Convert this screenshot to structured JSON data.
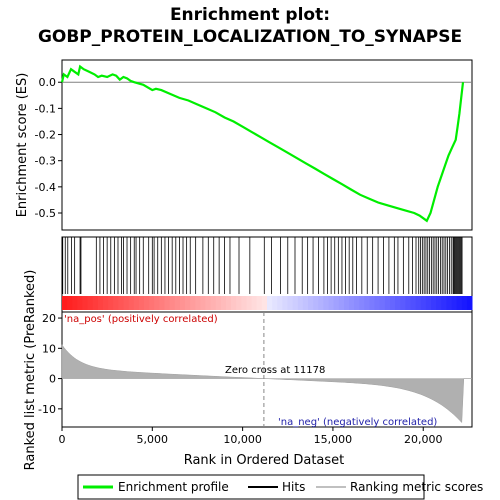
{
  "chart_data": {
    "type": "line",
    "title_line1": "Enrichment plot:",
    "title_line2": "GOBP_PROTEIN_LOCALIZATION_TO_SYNAPSE",
    "xlabel": "Rank in Ordered Dataset",
    "ylabel_top": "Enrichment score (ES)",
    "ylabel_bottom": "Ranked list metric (PreRanked)",
    "xlim": [
      0,
      22700
    ],
    "x_ticks": [
      0,
      5000,
      10000,
      15000,
      20000
    ],
    "x_tick_labels": [
      "0",
      "5,000",
      "10,000",
      "15,000",
      "20,000"
    ],
    "es_ylim": [
      -0.565,
      0.085
    ],
    "es_ticks": [
      0.0,
      -0.1,
      -0.2,
      -0.3,
      -0.4,
      -0.5
    ],
    "es_tick_labels": [
      "0.0",
      "-0.1",
      "-0.2",
      "-0.3",
      "-0.4",
      "-0.5"
    ],
    "metric_ylim": [
      -16,
      22
    ],
    "metric_ticks": [
      20,
      10,
      0,
      -10
    ],
    "metric_tick_labels": [
      "20",
      "10",
      "0",
      "-10"
    ],
    "zero_cross_rank": 11178,
    "zero_cross_label": "Zero cross at 11178",
    "pos_label": "'na_pos' (positively correlated)",
    "neg_label": "'na_neg' (negatively correlated)",
    "series": [
      {
        "name": "Enrichment profile",
        "color": "#00ee00",
        "x": [
          0,
          100,
          300,
          500,
          700,
          900,
          1000,
          1200,
          1500,
          1800,
          2000,
          2200,
          2500,
          2800,
          3000,
          3200,
          3400,
          3600,
          3800,
          4000,
          4500,
          5000,
          5200,
          5500,
          6000,
          6500,
          7000,
          7500,
          8000,
          8500,
          9000,
          9500,
          10000,
          10500,
          11000,
          11500,
          12000,
          12500,
          13000,
          13500,
          14000,
          14500,
          15000,
          15500,
          16000,
          16500,
          17000,
          17500,
          18000,
          18500,
          19000,
          19500,
          19800,
          20000,
          20200,
          20400,
          20600,
          20800,
          21000,
          21200,
          21400,
          21600,
          21800,
          21900,
          22000,
          22100,
          22200
        ],
        "y": [
          0.0,
          0.03,
          0.02,
          0.05,
          0.04,
          0.03,
          0.06,
          0.05,
          0.04,
          0.03,
          0.02,
          0.025,
          0.02,
          0.03,
          0.025,
          0.01,
          0.02,
          0.015,
          0.005,
          0.0,
          -0.01,
          -0.03,
          -0.025,
          -0.03,
          -0.045,
          -0.06,
          -0.07,
          -0.085,
          -0.1,
          -0.115,
          -0.135,
          -0.15,
          -0.17,
          -0.19,
          -0.21,
          -0.23,
          -0.25,
          -0.27,
          -0.29,
          -0.31,
          -0.33,
          -0.35,
          -0.37,
          -0.39,
          -0.41,
          -0.43,
          -0.445,
          -0.46,
          -0.47,
          -0.48,
          -0.49,
          -0.5,
          -0.51,
          -0.52,
          -0.53,
          -0.5,
          -0.45,
          -0.4,
          -0.36,
          -0.32,
          -0.28,
          -0.25,
          -0.22,
          -0.17,
          -0.12,
          -0.06,
          0.0
        ]
      }
    ],
    "hits": [
      40,
      180,
      320,
      520,
      700,
      1000,
      1050,
      1900,
      2100,
      2300,
      2500,
      2700,
      2900,
      3100,
      3300,
      3400,
      3600,
      3800,
      4000,
      4100,
      4300,
      4500,
      4800,
      5000,
      5100,
      5300,
      5500,
      5700,
      5900,
      6100,
      6300,
      6500,
      6700,
      6900,
      7100,
      7400,
      7800,
      8100,
      8400,
      8700,
      9000,
      9300,
      9800,
      10400,
      11200,
      11600,
      12100,
      12500,
      12900,
      13300,
      13600,
      13900,
      14200,
      14500,
      14700,
      14900,
      15100,
      15300,
      15500,
      15700,
      15900,
      16100,
      16300,
      16600,
      16900,
      17200,
      17500,
      17800,
      18100,
      18400,
      18600,
      18900,
      19200,
      19400,
      19600,
      19750,
      19850,
      19950,
      20050,
      20150,
      20250,
      20350,
      20450,
      20550,
      20650,
      20750,
      20850,
      20950,
      21050,
      21150,
      21250,
      21350,
      21450,
      21550,
      21650,
      21700,
      21750,
      21800,
      21850,
      21900,
      21950,
      22000,
      22050,
      22100,
      22150
    ],
    "legend": [
      {
        "label": "Enrichment profile",
        "color": "#00ee00"
      },
      {
        "label": "Hits",
        "color": "#000000"
      },
      {
        "label": "Ranking metric scores",
        "color": "#c0c0c0"
      }
    ],
    "grid": false,
    "legend_position": "bottom"
  }
}
